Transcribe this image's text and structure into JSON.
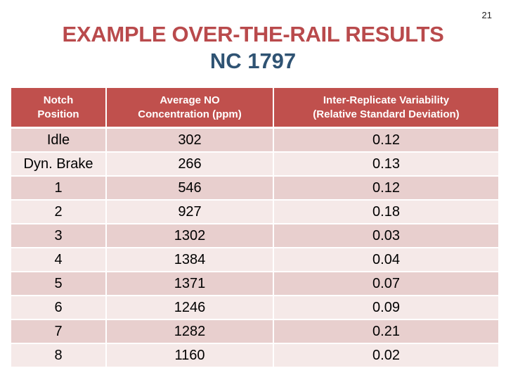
{
  "page_number": "21",
  "title": {
    "line1": "EXAMPLE OVER-THE-RAIL RESULTS",
    "line2": "NC 1797"
  },
  "table": {
    "headers": [
      {
        "line1": "Notch",
        "line2": "Position"
      },
      {
        "line1": "Average NO",
        "line2": "Concentration (ppm)"
      },
      {
        "line1": "Inter-Replicate Variability",
        "line2": "(Relative Standard Deviation)"
      }
    ],
    "rows": [
      [
        "Idle",
        "302",
        "0.12"
      ],
      [
        "Dyn. Brake",
        "266",
        "0.13"
      ],
      [
        "1",
        "546",
        "0.12"
      ],
      [
        "2",
        "927",
        "0.18"
      ],
      [
        "3",
        "1302",
        "0.03"
      ],
      [
        "4",
        "1384",
        "0.04"
      ],
      [
        "5",
        "1371",
        "0.07"
      ],
      [
        "6",
        "1246",
        "0.09"
      ],
      [
        "7",
        "1282",
        "0.21"
      ],
      [
        "8",
        "1160",
        "0.02"
      ]
    ]
  },
  "colors": {
    "title_red": "#b94a4c",
    "title_blue": "#2f5373",
    "header_bg": "#c0504d",
    "row_dark": "#e8cfce",
    "row_light": "#f5e9e8"
  }
}
